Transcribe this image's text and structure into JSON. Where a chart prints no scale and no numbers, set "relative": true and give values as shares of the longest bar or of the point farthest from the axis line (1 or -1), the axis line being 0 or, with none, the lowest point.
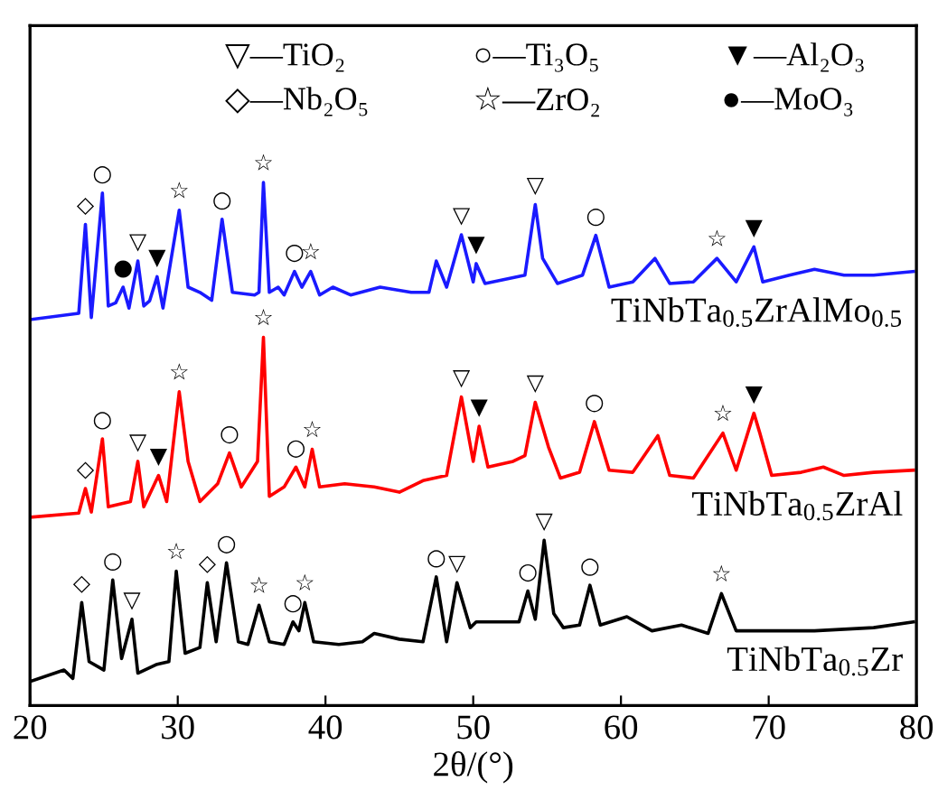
{
  "chart_data": {
    "type": "line",
    "relative": true,
    "xlabel": "2θ/(°)",
    "xlim": [
      20,
      80
    ],
    "xticks": [
      20,
      30,
      40,
      50,
      60,
      70,
      80
    ],
    "tick_labels": "x",
    "series": [
      {
        "name": "TiNbTa$_{0.5}$ZrAlMo$_{0.5}$",
        "color": "#1a1aff",
        "x": [
          20,
          23.3,
          23.75,
          24.15,
          24.9,
          25.3,
          25.8,
          26.3,
          26.7,
          27.3,
          27.7,
          28.1,
          28.6,
          29.0,
          30.1,
          30.7,
          31.5,
          32.3,
          33.0,
          33.7,
          35.2,
          35.5,
          35.8,
          36.2,
          36.8,
          37.2,
          37.9,
          38.4,
          39.0,
          39.6,
          40.5,
          41.7,
          43.7,
          45.8,
          47.0,
          47.5,
          48.2,
          49.2,
          50.0,
          50.2,
          50.8,
          53.5,
          54.2,
          54.7,
          55.7,
          57.4,
          58.3,
          59.2,
          60.8,
          62.3,
          63.3,
          64.9,
          66.5,
          67.8,
          69.0,
          69.6,
          71.4,
          73.1,
          75.1,
          77.1,
          79.8
        ],
        "values": [
          0.738,
          0.75,
          0.92,
          0.742,
          0.98,
          0.764,
          0.77,
          0.8,
          0.76,
          0.85,
          0.764,
          0.774,
          0.82,
          0.76,
          0.947,
          0.8,
          0.79,
          0.775,
          0.93,
          0.79,
          0.785,
          0.79,
          1.0,
          0.79,
          0.8,
          0.785,
          0.83,
          0.8,
          0.83,
          0.785,
          0.8,
          0.785,
          0.8,
          0.79,
          0.79,
          0.85,
          0.8,
          0.9,
          0.81,
          0.845,
          0.807,
          0.823,
          0.958,
          0.855,
          0.807,
          0.823,
          0.899,
          0.8,
          0.81,
          0.855,
          0.807,
          0.81,
          0.855,
          0.81,
          0.877,
          0.81,
          0.823,
          0.834,
          0.823,
          0.823,
          0.83
        ]
      },
      {
        "name": "TiNbTa$_{0.5}$ZrAl",
        "color": "#ff0000",
        "x": [
          20,
          23.3,
          23.75,
          24.15,
          24.9,
          25.3,
          26.8,
          27.3,
          27.7,
          28.7,
          29.25,
          30.1,
          30.7,
          31.5,
          32.7,
          33.5,
          34.3,
          35.4,
          35.8,
          36.2,
          37.2,
          38.0,
          38.6,
          39.1,
          39.6,
          41.3,
          43.3,
          45.0,
          46.6,
          48.2,
          49.2,
          50.0,
          50.4,
          51.0,
          52.7,
          53.5,
          54.2,
          55.1,
          55.9,
          57.2,
          58.2,
          59.2,
          60.8,
          62.5,
          63.3,
          64.9,
          66.9,
          67.8,
          69.0,
          69.4,
          70.2,
          72.2,
          73.7,
          75.1,
          77.1,
          79.8
        ],
        "values": [
          0.36,
          0.368,
          0.415,
          0.37,
          0.51,
          0.38,
          0.39,
          0.467,
          0.38,
          0.44,
          0.39,
          0.6,
          0.467,
          0.39,
          0.424,
          0.483,
          0.418,
          0.467,
          0.704,
          0.4,
          0.418,
          0.456,
          0.418,
          0.49,
          0.418,
          0.424,
          0.418,
          0.408,
          0.43,
          0.44,
          0.59,
          0.467,
          0.534,
          0.456,
          0.467,
          0.478,
          0.58,
          0.494,
          0.435,
          0.446,
          0.543,
          0.45,
          0.446,
          0.516,
          0.44,
          0.435,
          0.521,
          0.45,
          0.559,
          0.521,
          0.44,
          0.446,
          0.456,
          0.44,
          0.446,
          0.45
        ]
      },
      {
        "name": "TiNbTa$_{0.5}$Zr",
        "color": "#000000",
        "x": [
          20,
          22.3,
          22.9,
          23.5,
          24.0,
          25.0,
          25.6,
          26.2,
          26.9,
          27.3,
          28.6,
          29.4,
          29.9,
          30.5,
          31.5,
          32.0,
          32.6,
          33.3,
          34.1,
          34.75,
          35.5,
          36.2,
          37.2,
          37.8,
          38.2,
          38.6,
          39.2,
          40.9,
          42.5,
          43.3,
          45.0,
          46.6,
          47.5,
          48.2,
          48.9,
          49.8,
          50.2,
          52.3,
          53.1,
          53.7,
          54.2,
          54.8,
          55.45,
          56.1,
          57.2,
          57.9,
          58.6,
          60.4,
          62.1,
          64.1,
          65.9,
          66.8,
          67.8,
          69.8,
          73.1,
          77.1,
          79.8
        ],
        "values": [
          0.046,
          0.068,
          0.052,
          0.197,
          0.084,
          0.068,
          0.24,
          0.09,
          0.165,
          0.062,
          0.079,
          0.084,
          0.257,
          0.1,
          0.111,
          0.235,
          0.122,
          0.273,
          0.122,
          0.117,
          0.192,
          0.122,
          0.117,
          0.16,
          0.143,
          0.197,
          0.122,
          0.117,
          0.122,
          0.138,
          0.127,
          0.122,
          0.246,
          0.122,
          0.235,
          0.149,
          0.16,
          0.16,
          0.16,
          0.219,
          0.165,
          0.316,
          0.176,
          0.149,
          0.154,
          0.23,
          0.154,
          0.17,
          0.143,
          0.154,
          0.138,
          0.214,
          0.143,
          0.143,
          0.143,
          0.149,
          0.16
        ]
      }
    ],
    "annotations": [
      "▽—TiO₂",
      "○—Ti₃O₅",
      "▼—Al₂O₃",
      "◇—Nb₂O₅",
      "☆—ZrO₂",
      "●—MoO₃",
      {
        "text": "◇",
        "x": 23.75,
        "y": 0.92
      },
      {
        "text": "○",
        "x": 24.9,
        "y": 0.98
      },
      {
        "text": "●",
        "x": 26.3,
        "y": 0.8
      },
      {
        "text": "▽",
        "x": 27.3,
        "y": 0.85
      },
      {
        "text": "▼",
        "x": 28.6,
        "y": 0.82
      },
      {
        "text": "☆",
        "x": 30.1,
        "y": 0.947
      },
      {
        "text": "○",
        "x": 33.0,
        "y": 0.93
      },
      {
        "text": "☆",
        "x": 35.8,
        "y": 1.0
      },
      {
        "text": "○",
        "x": 37.9,
        "y": 0.83
      },
      {
        "text": "☆",
        "x": 39.0,
        "y": 0.83
      },
      {
        "text": "▽",
        "x": 49.2,
        "y": 0.9
      },
      {
        "text": "▼",
        "x": 50.2,
        "y": 0.845
      },
      {
        "text": "▽",
        "x": 54.2,
        "y": 0.958
      },
      {
        "text": "○",
        "x": 58.3,
        "y": 0.899
      },
      {
        "text": "☆",
        "x": 66.5,
        "y": 0.855
      },
      {
        "text": "▼",
        "x": 69.0,
        "y": 0.877
      },
      {
        "text": "◇",
        "x": 23.75,
        "y": 0.415
      },
      {
        "text": "○",
        "x": 24.9,
        "y": 0.51
      },
      {
        "text": "▽",
        "x": 27.3,
        "y": 0.467
      },
      {
        "text": "▼",
        "x": 28.7,
        "y": 0.44
      },
      {
        "text": "☆",
        "x": 30.1,
        "y": 0.6
      },
      {
        "text": "○",
        "x": 33.5,
        "y": 0.483
      },
      {
        "text": "☆",
        "x": 35.8,
        "y": 0.704
      },
      {
        "text": "○",
        "x": 38.0,
        "y": 0.456
      },
      {
        "text": "☆",
        "x": 39.1,
        "y": 0.49
      },
      {
        "text": "▽",
        "x": 49.2,
        "y": 0.59
      },
      {
        "text": "▼",
        "x": 50.4,
        "y": 0.534
      },
      {
        "text": "▽",
        "x": 54.2,
        "y": 0.58
      },
      {
        "text": "○",
        "x": 58.2,
        "y": 0.543
      },
      {
        "text": "☆",
        "x": 66.9,
        "y": 0.521
      },
      {
        "text": "▼",
        "x": 69.0,
        "y": 0.559
      },
      {
        "text": "◇",
        "x": 23.5,
        "y": 0.197
      },
      {
        "text": "○",
        "x": 25.6,
        "y": 0.24
      },
      {
        "text": "▽",
        "x": 26.9,
        "y": 0.165
      },
      {
        "text": "☆",
        "x": 29.9,
        "y": 0.257
      },
      {
        "text": "◇",
        "x": 32.0,
        "y": 0.235
      },
      {
        "text": "○",
        "x": 33.3,
        "y": 0.273
      },
      {
        "text": "☆",
        "x": 35.5,
        "y": 0.192
      },
      {
        "text": "○",
        "x": 37.8,
        "y": 0.16
      },
      {
        "text": "☆",
        "x": 38.6,
        "y": 0.197
      },
      {
        "text": "○",
        "x": 47.5,
        "y": 0.246
      },
      {
        "text": "▽",
        "x": 48.9,
        "y": 0.235
      },
      {
        "text": "○",
        "x": 53.7,
        "y": 0.219
      },
      {
        "text": "▽",
        "x": 54.8,
        "y": 0.316
      },
      {
        "text": "○",
        "x": 57.9,
        "y": 0.23
      },
      {
        "text": "☆",
        "x": 66.8,
        "y": 0.214
      }
    ]
  }
}
